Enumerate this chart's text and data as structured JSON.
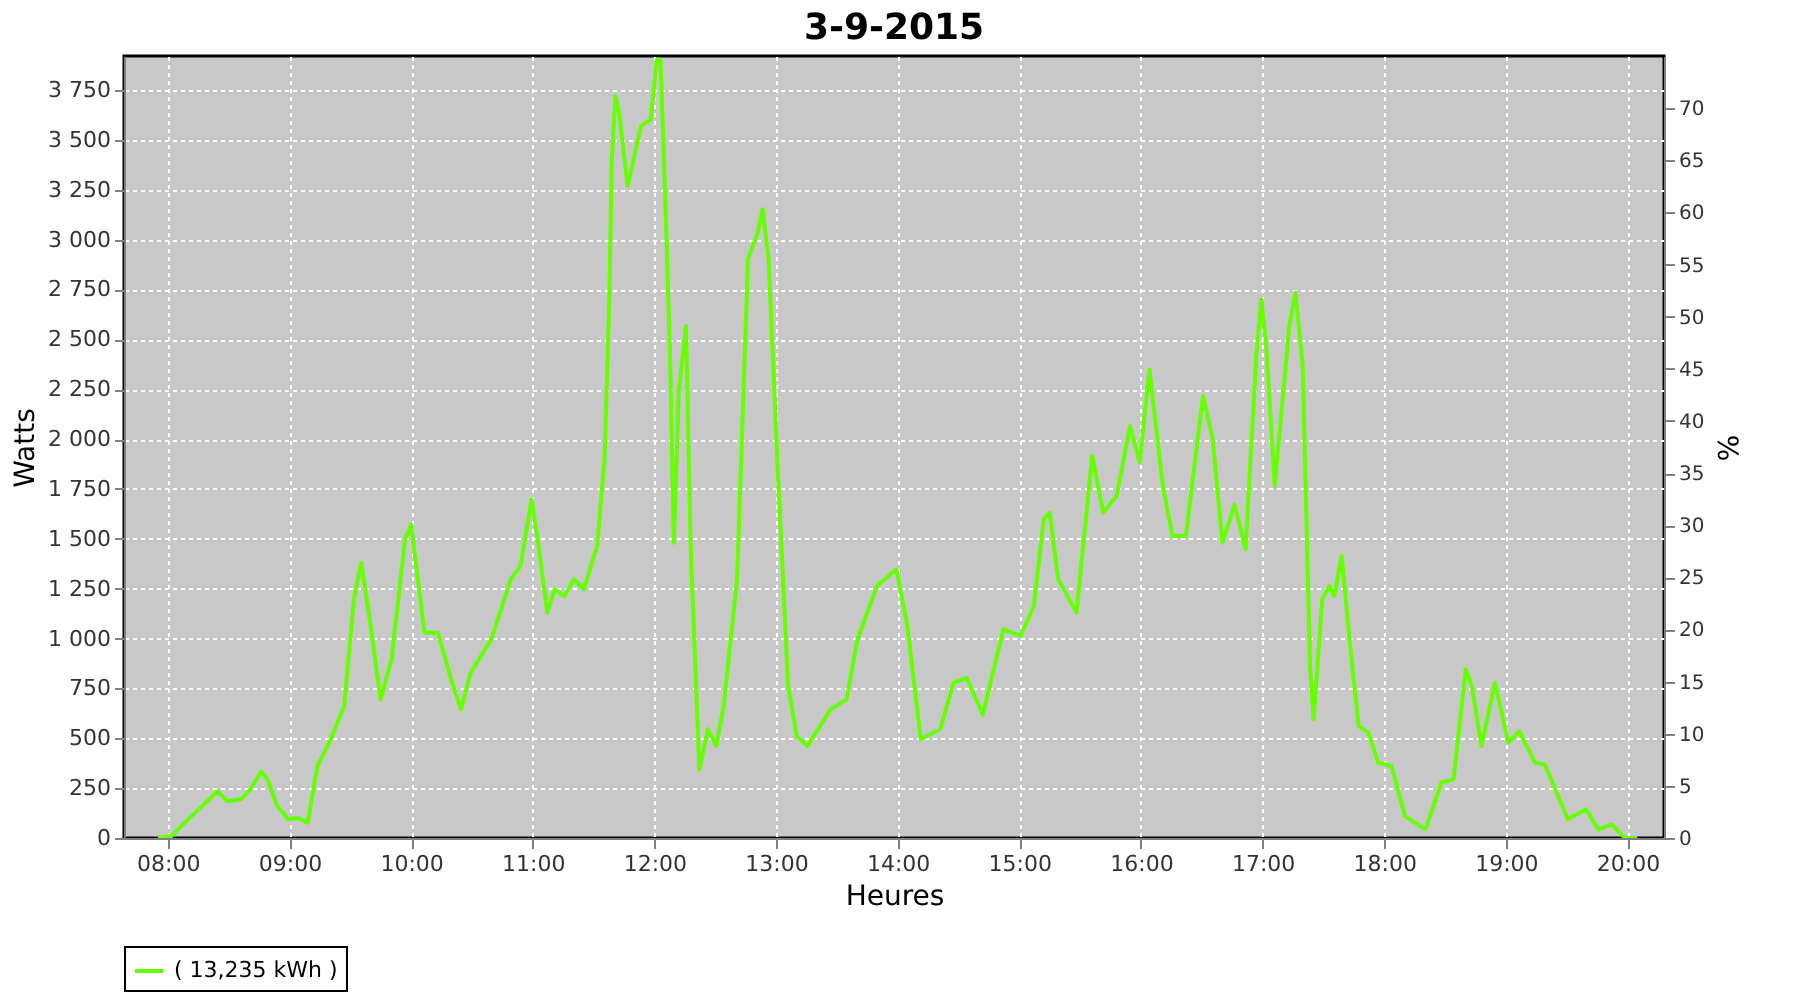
{
  "chart_data": {
    "type": "line",
    "title": "3-9-2015",
    "xlabel": "Heures",
    "ylabel": "Watts",
    "y2label": "%",
    "xlim": [
      7.64,
      20.3
    ],
    "xticks": [
      {
        "value": 8,
        "label": "08:00"
      },
      {
        "value": 9,
        "label": "09:00"
      },
      {
        "value": 10,
        "label": "10:00"
      },
      {
        "value": 11,
        "label": "11:00"
      },
      {
        "value": 12,
        "label": "12:00"
      },
      {
        "value": 13,
        "label": "13:00"
      },
      {
        "value": 14,
        "label": "14:00"
      },
      {
        "value": 15,
        "label": "15:00"
      },
      {
        "value": 16,
        "label": "16:00"
      },
      {
        "value": 17,
        "label": "17:00"
      },
      {
        "value": 18,
        "label": "18:00"
      },
      {
        "value": 19,
        "label": "19:00"
      },
      {
        "value": 20,
        "label": "20:00"
      }
    ],
    "ylim": [
      0,
      3920
    ],
    "yticks": [
      0,
      250,
      500,
      750,
      {
        "value": 1000,
        "label": "1 000"
      },
      {
        "value": 1250,
        "label": "1 250"
      },
      {
        "value": 1500,
        "label": "1 500"
      },
      {
        "value": 1750,
        "label": "1 750"
      },
      {
        "value": 2000,
        "label": "2 000"
      },
      {
        "value": 2250,
        "label": "2 250"
      },
      {
        "value": 2500,
        "label": "2 500"
      },
      {
        "value": 2750,
        "label": "2 750"
      },
      {
        "value": 3000,
        "label": "3 000"
      },
      {
        "value": 3250,
        "label": "3 250"
      },
      {
        "value": 3500,
        "label": "3 500"
      },
      {
        "value": 3750,
        "label": "3 750"
      }
    ],
    "y2lim": [
      0,
      75
    ],
    "y2ticks": [
      0,
      5,
      10,
      15,
      20,
      25,
      30,
      35,
      40,
      45,
      50,
      55,
      60,
      65,
      70
    ],
    "grid": true,
    "legend": "bottom",
    "marker": "none",
    "line_style": "solid",
    "series": [
      {
        "name": "( 13,235 kWh )",
        "color": "#66ff00",
        "x": [
          7.92,
          8.03,
          8.14,
          8.41,
          8.49,
          8.6,
          8.68,
          8.77,
          8.82,
          8.9,
          8.99,
          9.07,
          9.15,
          9.23,
          9.34,
          9.45,
          9.53,
          9.59,
          9.66,
          9.75,
          9.84,
          9.95,
          10.0,
          10.11,
          10.22,
          10.33,
          10.41,
          10.49,
          10.66,
          10.82,
          10.9,
          10.99,
          11.04,
          11.12,
          11.18,
          11.26,
          11.34,
          11.42,
          11.53,
          11.59,
          11.63,
          11.65,
          11.68,
          11.71,
          11.78,
          11.89,
          11.97,
          12.02,
          12.05,
          12.09,
          12.13,
          12.16,
          12.2,
          12.26,
          12.3,
          12.37,
          12.44,
          12.51,
          12.57,
          12.68,
          12.77,
          12.85,
          12.89,
          12.94,
          13.01,
          13.1,
          13.17,
          13.26,
          13.45,
          13.58,
          13.67,
          13.83,
          13.99,
          14.08,
          14.19,
          14.35,
          14.46,
          14.57,
          14.7,
          14.87,
          15.01,
          15.12,
          15.2,
          15.25,
          15.32,
          15.47,
          15.6,
          15.69,
          15.8,
          15.91,
          15.99,
          16.07,
          16.18,
          16.26,
          16.37,
          16.51,
          16.59,
          16.67,
          16.77,
          16.86,
          16.95,
          16.99,
          17.03,
          17.1,
          17.22,
          17.27,
          17.33,
          17.39,
          17.42,
          17.49,
          17.55,
          17.59,
          17.65,
          17.72,
          17.79,
          17.87,
          17.95,
          18.06,
          18.17,
          18.34,
          18.47,
          18.57,
          18.67,
          18.72,
          18.8,
          18.91,
          19.02,
          19.11,
          19.24,
          19.32,
          19.51,
          19.66,
          19.76,
          19.87,
          19.98,
          20.08
        ],
        "values": [
          0,
          10,
          77,
          234,
          184,
          194,
          244,
          334,
          294,
          160,
          94,
          100,
          77,
          361,
          495,
          662,
          1196,
          1380,
          1096,
          695,
          896,
          1497,
          1571,
          1029,
          1029,
          795,
          645,
          829,
          996,
          1297,
          1364,
          1698,
          1497,
          1130,
          1247,
          1213,
          1297,
          1247,
          1464,
          1898,
          2700,
          3402,
          3720,
          3636,
          3268,
          3569,
          3603,
          3903,
          3903,
          3201,
          2399,
          1480,
          2233,
          2567,
          1430,
          344,
          545,
          461,
          662,
          1297,
          2901,
          3035,
          3152,
          2901,
          1898,
          762,
          511,
          461,
          645,
          695,
          996,
          1263,
          1347,
          1063,
          495,
          545,
          779,
          802,
          618,
          1046,
          1013,
          1163,
          1597,
          1631,
          1297,
          1130,
          1915,
          1631,
          1714,
          2065,
          1882,
          2349,
          1765,
          1514,
          1514,
          2216,
          1998,
          1480,
          1671,
          1447,
          2432,
          2700,
          2466,
          1765,
          2567,
          2734,
          2366,
          862,
          595,
          1196,
          1263,
          1213,
          1414,
          962,
          561,
          528,
          378,
          361,
          110,
          43,
          277,
          294,
          846,
          762,
          461,
          779,
          478,
          535,
          378,
          368,
          94,
          144,
          43,
          67,
          0,
          0
        ]
      }
    ]
  }
}
